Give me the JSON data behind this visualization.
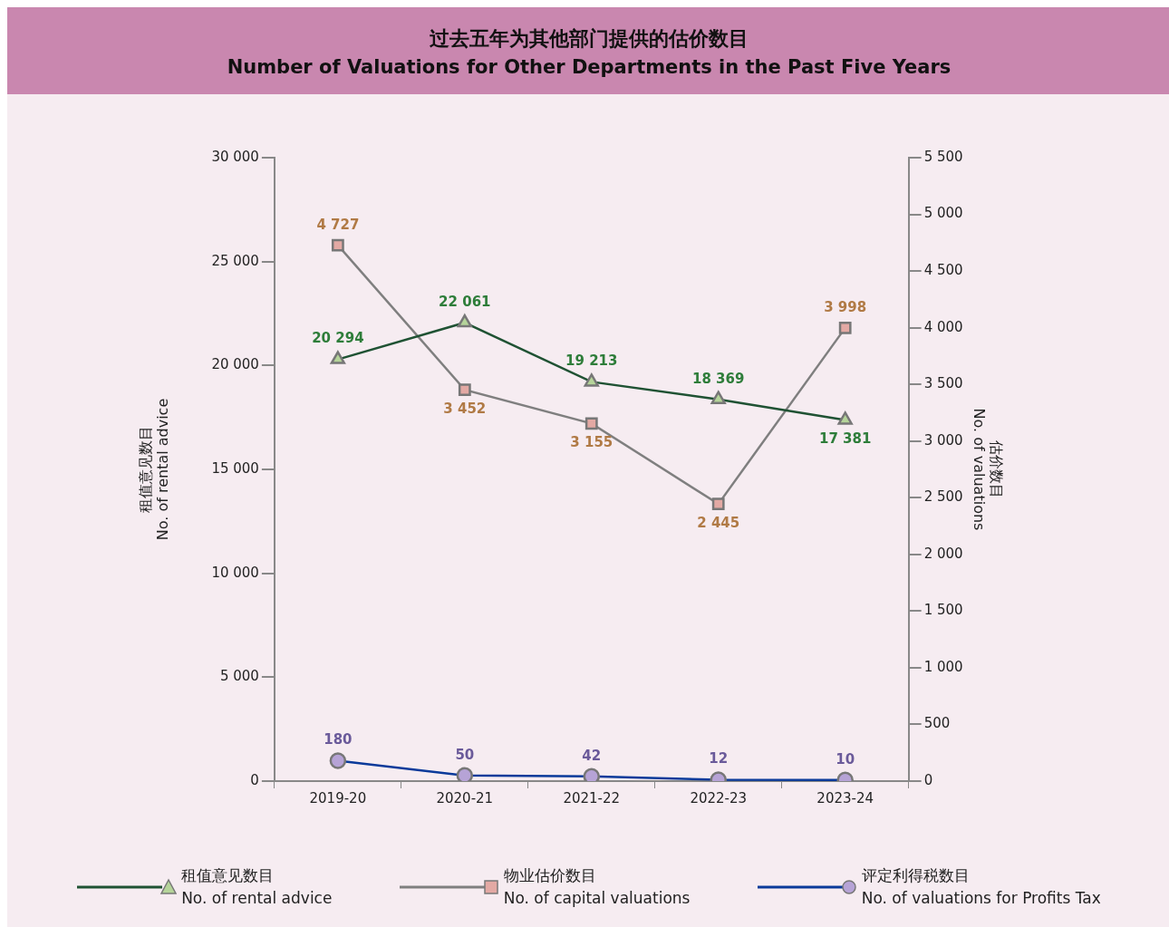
{
  "chart_data": {
    "type": "line",
    "title": "过去五年为其他部门提供的估价数目",
    "subtitle": "Number of Valuations for Other Departments in the Past Five Years",
    "ylabel": "租值意见数目\nNo. of rental advice",
    "y2label": "估价数目\nNo. of valuations",
    "categories": [
      "2019-20",
      "2020-21",
      "2021-22",
      "2022-23",
      "2023-24"
    ],
    "series": [
      {
        "name": "租值意见数目\nNo. of rental advice",
        "color": "#1f5233",
        "marker": "triangle",
        "values": [
          20294,
          22061,
          19213,
          18369,
          17381
        ]
      },
      {
        "name": "物业估价数目\nNo. of capital valuations",
        "color": "#7f7f7f",
        "marker": "square",
        "axis": "y2",
        "values": [
          4727,
          3452,
          3155,
          2445,
          3998
        ]
      },
      {
        "name": "评定利得税数目\nNo. of valuations for Profits Tax",
        "color": "#0a3a9a",
        "marker": "circle",
        "axis": "y2",
        "values": [
          180,
          50,
          42,
          12,
          10
        ]
      }
    ],
    "ylim": [
      0,
      30000
    ],
    "yticks": [
      0,
      {
        "value": 5000,
        "label": "5 000"
      },
      {
        "value": 10000,
        "label": "10 000"
      },
      {
        "value": 15000,
        "label": "15 000"
      },
      {
        "value": 20000,
        "label": "20 000"
      },
      {
        "value": 25000,
        "label": "25 000"
      },
      {
        "value": 30000,
        "label": "30 000"
      }
    ],
    "y2lim": [
      0,
      5500
    ],
    "y2ticks": [
      0,
      500,
      {
        "value": 1000,
        "label": "1 000"
      },
      {
        "value": 1500,
        "label": "1 500"
      },
      {
        "value": 2000,
        "label": "2 000"
      },
      {
        "value": 2500,
        "label": "2 500"
      },
      {
        "value": 3000,
        "label": "3 000"
      },
      {
        "value": 3500,
        "label": "3 500"
      },
      {
        "value": 4000,
        "label": "4 000"
      },
      {
        "value": 4500,
        "label": "4 500"
      },
      {
        "value": 5000,
        "label": "5 000"
      },
      {
        "value": 5500,
        "label": "5 500"
      }
    ],
    "data_labels": true,
    "grid": false,
    "legend": "bottom"
  }
}
